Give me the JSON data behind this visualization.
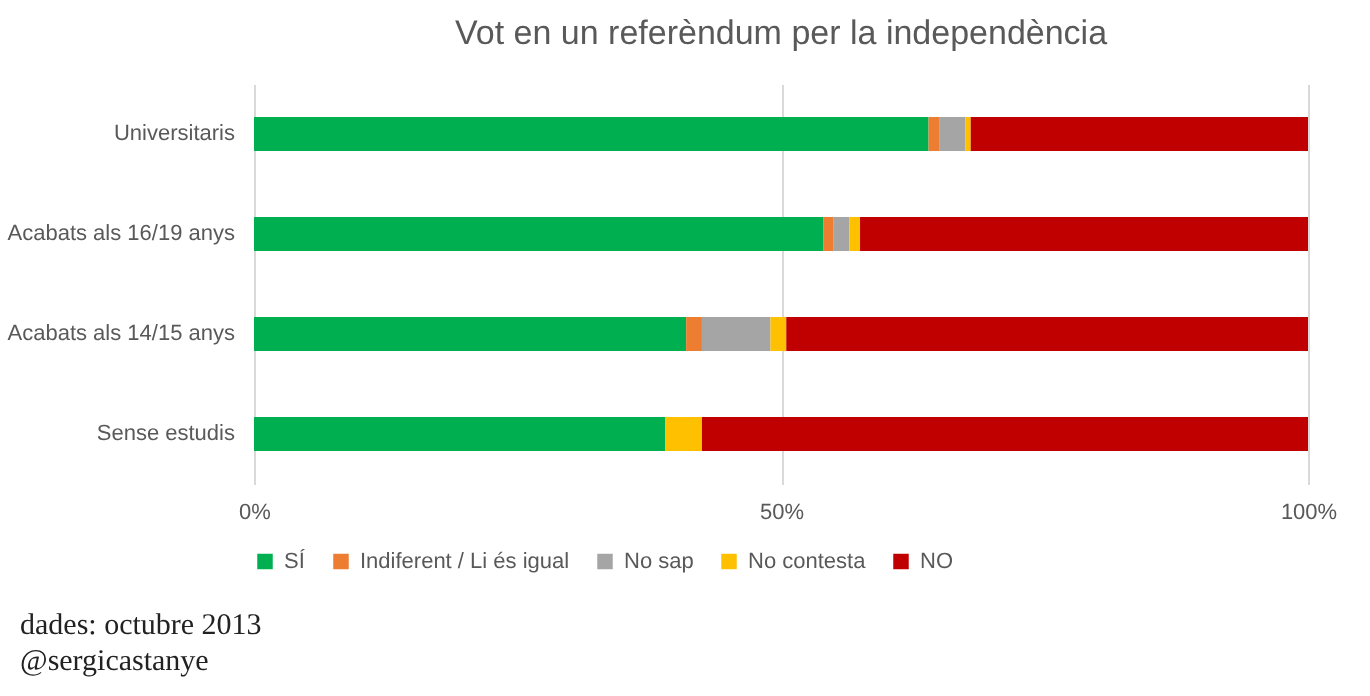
{
  "chart_data": {
    "type": "bar",
    "orientation": "horizontal",
    "stacked": true,
    "title": "Vot en un referèndum per la independència",
    "categories": [
      "Universitaris",
      "Acabats als 16/19 anys",
      "Acabats als 14/15 anys",
      "Sense estudis"
    ],
    "series": [
      {
        "name": "SÍ",
        "color": "#00b050",
        "values": [
          64,
          54,
          41,
          39
        ]
      },
      {
        "name": "Indiferent / Li és igual",
        "color": "#ed7d31",
        "values": [
          1,
          1,
          1.5,
          0
        ]
      },
      {
        "name": "No sap",
        "color": "#a5a5a5",
        "values": [
          2.5,
          1.5,
          6.5,
          0
        ]
      },
      {
        "name": "No contesta",
        "color": "#ffc000",
        "values": [
          0.5,
          1,
          1.5,
          3.5
        ]
      },
      {
        "name": "NO",
        "color": "#c00000",
        "values": [
          32,
          42.5,
          49.5,
          57.5
        ]
      }
    ],
    "xlim": [
      0,
      100
    ],
    "xticks": [
      {
        "value": 0,
        "label": "0%"
      },
      {
        "value": 50,
        "label": "50%"
      },
      {
        "value": 100,
        "label": "100%"
      }
    ],
    "grid": "x",
    "legend": "bottom",
    "annotations": [
      "dades: octubre 2013",
      "@sergicastanye"
    ]
  }
}
